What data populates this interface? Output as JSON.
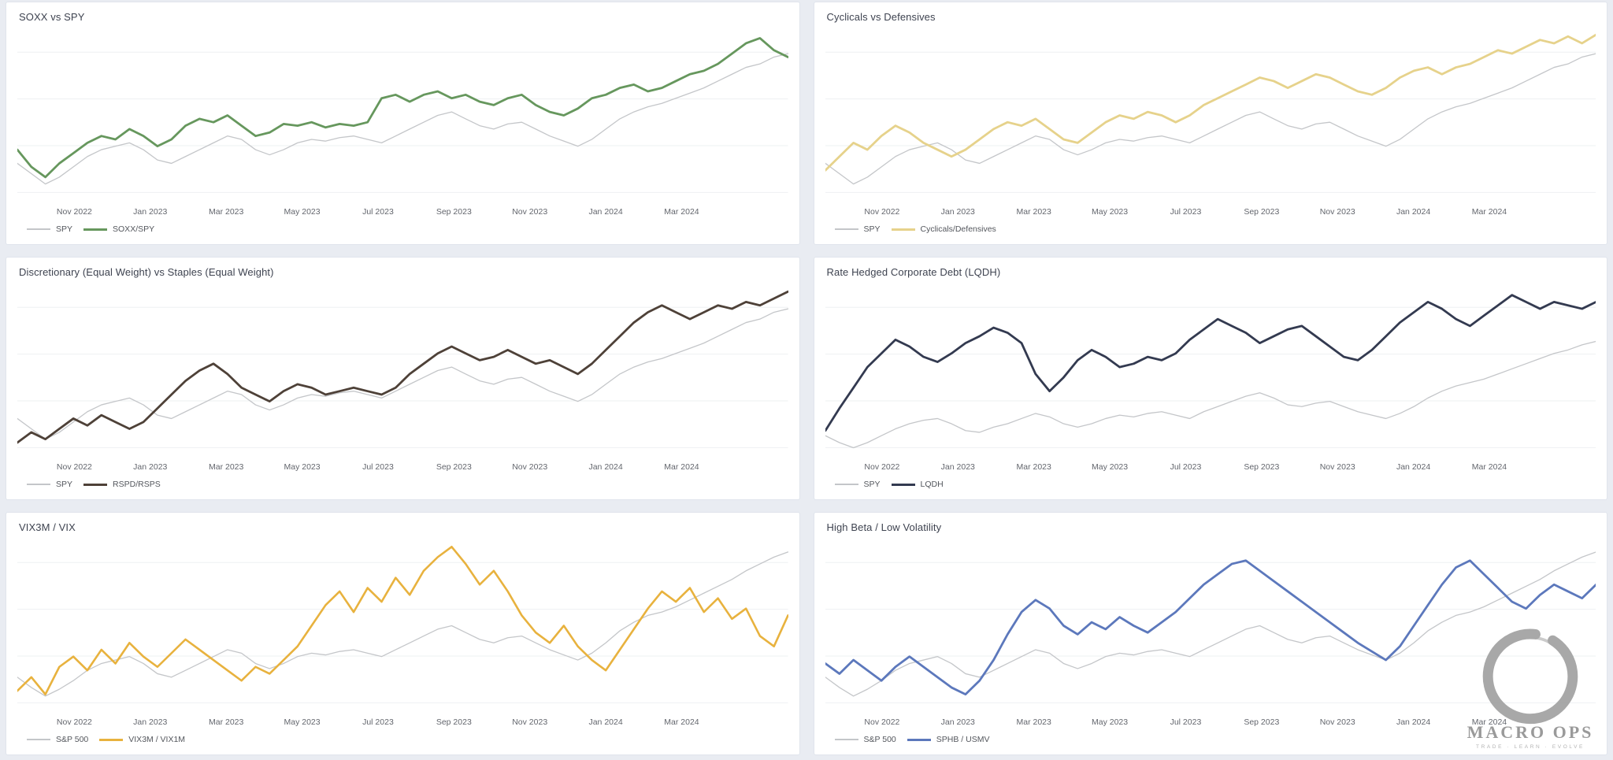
{
  "page": {
    "background_color": "#e9ecf2",
    "panel_color": "#ffffff",
    "grid_layout": "2 columns x 3 rows"
  },
  "axis": {
    "labels": [
      "Nov 2022",
      "Jan 2023",
      "Mar 2023",
      "May 2023",
      "Jul 2023",
      "Sep 2023",
      "Nov 2023",
      "Jan 2024",
      "Mar 2024"
    ]
  },
  "logo": {
    "title": "MACRO OPS",
    "tagline": "TRADE · LEARN · EVOLVE",
    "color": "#9a9a9a"
  },
  "chart_data": [
    {
      "type": "line",
      "title": "SOXX vs SPY",
      "x_axis": [
        "Nov 2022",
        "Jan 2023",
        "Mar 2023",
        "May 2023",
        "Jul 2023",
        "Sep 2023",
        "Nov 2023",
        "Jan 2024",
        "Mar 2024"
      ],
      "y_axis": "hidden (normalized relative performance, values are % of plot height 0-100)",
      "grid": "faint horizontal lines",
      "legend_position": "bottom-left",
      "series": [
        {
          "name": "SPY",
          "color": "#c4c6c9",
          "line_width": 1.3,
          "values": [
            22,
            16,
            10,
            14,
            20,
            26,
            30,
            32,
            34,
            30,
            24,
            22,
            26,
            30,
            34,
            38,
            36,
            30,
            27,
            30,
            34,
            36,
            35,
            37,
            38,
            36,
            34,
            38,
            42,
            46,
            50,
            52,
            48,
            44,
            42,
            45,
            46,
            42,
            38,
            35,
            32,
            36,
            42,
            48,
            52,
            55,
            57,
            60,
            63,
            66,
            70,
            74,
            78,
            80,
            84,
            86
          ]
        },
        {
          "name": "SOXX/SPY",
          "color": "#66975d",
          "line_width": 2.8,
          "values": [
            30,
            20,
            14,
            22,
            28,
            34,
            38,
            36,
            42,
            38,
            32,
            36,
            44,
            48,
            46,
            50,
            44,
            38,
            40,
            45,
            44,
            46,
            43,
            45,
            44,
            46,
            60,
            62,
            58,
            62,
            64,
            60,
            62,
            58,
            56,
            60,
            62,
            56,
            52,
            50,
            54,
            60,
            62,
            66,
            68,
            64,
            66,
            70,
            74,
            76,
            80,
            86,
            92,
            95,
            88,
            84
          ]
        }
      ]
    },
    {
      "type": "line",
      "title": "Cyclicals vs Defensives",
      "x_axis": [
        "Nov 2022",
        "Jan 2023",
        "Mar 2023",
        "May 2023",
        "Jul 2023",
        "Sep 2023",
        "Nov 2023",
        "Jan 2024",
        "Mar 2024"
      ],
      "y_axis": "hidden (normalized relative performance, values are % of plot height 0-100)",
      "grid": "faint horizontal lines",
      "legend_position": "bottom-left",
      "series": [
        {
          "name": "SPY",
          "color": "#c4c6c9",
          "line_width": 1.3,
          "values": [
            22,
            16,
            10,
            14,
            20,
            26,
            30,
            32,
            34,
            30,
            24,
            22,
            26,
            30,
            34,
            38,
            36,
            30,
            27,
            30,
            34,
            36,
            35,
            37,
            38,
            36,
            34,
            38,
            42,
            46,
            50,
            52,
            48,
            44,
            42,
            45,
            46,
            42,
            38,
            35,
            32,
            36,
            42,
            48,
            52,
            55,
            57,
            60,
            63,
            66,
            70,
            74,
            78,
            80,
            84,
            86
          ]
        },
        {
          "name": "Cyclicals/Defensives",
          "color": "#e6d28b",
          "line_width": 2.8,
          "values": [
            18,
            26,
            34,
            30,
            38,
            44,
            40,
            34,
            30,
            26,
            30,
            36,
            42,
            46,
            44,
            48,
            42,
            36,
            34,
            40,
            46,
            50,
            48,
            52,
            50,
            46,
            50,
            56,
            60,
            64,
            68,
            72,
            70,
            66,
            70,
            74,
            72,
            68,
            64,
            62,
            66,
            72,
            76,
            78,
            74,
            78,
            80,
            84,
            88,
            86,
            90,
            94,
            92,
            96,
            92,
            97
          ]
        }
      ]
    },
    {
      "type": "line",
      "title": "Discretionary (Equal Weight) vs Staples (Equal Weight)",
      "x_axis": [
        "Nov 2022",
        "Jan 2023",
        "Mar 2023",
        "May 2023",
        "Jul 2023",
        "Sep 2023",
        "Nov 2023",
        "Jan 2024",
        "Mar 2024"
      ],
      "y_axis": "hidden (normalized relative performance, values are % of plot height 0-100)",
      "grid": "faint horizontal lines",
      "legend_position": "bottom-left",
      "series": [
        {
          "name": "SPY",
          "color": "#c4c6c9",
          "line_width": 1.3,
          "values": [
            22,
            16,
            10,
            14,
            20,
            26,
            30,
            32,
            34,
            30,
            24,
            22,
            26,
            30,
            34,
            38,
            36,
            30,
            27,
            30,
            34,
            36,
            35,
            37,
            38,
            36,
            34,
            38,
            42,
            46,
            50,
            52,
            48,
            44,
            42,
            45,
            46,
            42,
            38,
            35,
            32,
            36,
            42,
            48,
            52,
            55,
            57,
            60,
            63,
            66,
            70,
            74,
            78,
            80,
            84,
            86
          ]
        },
        {
          "name": "RSPD/RSPS",
          "color": "#4e4138",
          "line_width": 2.8,
          "values": [
            8,
            14,
            10,
            16,
            22,
            18,
            24,
            20,
            16,
            20,
            28,
            36,
            44,
            50,
            54,
            48,
            40,
            36,
            32,
            38,
            42,
            40,
            36,
            38,
            40,
            38,
            36,
            40,
            48,
            54,
            60,
            64,
            60,
            56,
            58,
            62,
            58,
            54,
            56,
            52,
            48,
            54,
            62,
            70,
            78,
            84,
            88,
            84,
            80,
            84,
            88,
            86,
            90,
            88,
            92,
            96
          ]
        }
      ]
    },
    {
      "type": "line",
      "title": "Rate Hedged Corporate Debt (LQDH)",
      "x_axis": [
        "Nov 2022",
        "Jan 2023",
        "Mar 2023",
        "May 2023",
        "Jul 2023",
        "Sep 2023",
        "Nov 2023",
        "Jan 2024",
        "Mar 2024"
      ],
      "y_axis": "hidden (normalized relative performance, values are % of plot height 0-100)",
      "grid": "faint horizontal lines",
      "legend_position": "bottom-left",
      "series": [
        {
          "name": "SPY",
          "color": "#c4c6c9",
          "line_width": 1.3,
          "values": [
            12,
            8,
            5,
            8,
            12,
            16,
            19,
            21,
            22,
            19,
            15,
            14,
            17,
            19,
            22,
            25,
            23,
            19,
            17,
            19,
            22,
            24,
            23,
            25,
            26,
            24,
            22,
            26,
            29,
            32,
            35,
            37,
            34,
            30,
            29,
            31,
            32,
            29,
            26,
            24,
            22,
            25,
            29,
            34,
            38,
            41,
            43,
            45,
            48,
            51,
            54,
            57,
            60,
            62,
            65,
            67
          ]
        },
        {
          "name": "LQDH",
          "color": "#333a50",
          "line_width": 2.8,
          "values": [
            15,
            28,
            40,
            52,
            60,
            68,
            64,
            58,
            55,
            60,
            66,
            70,
            75,
            72,
            66,
            48,
            38,
            46,
            56,
            62,
            58,
            52,
            54,
            58,
            56,
            60,
            68,
            74,
            80,
            76,
            72,
            66,
            70,
            74,
            76,
            70,
            64,
            58,
            56,
            62,
            70,
            78,
            84,
            90,
            86,
            80,
            76,
            82,
            88,
            94,
            90,
            86,
            90,
            88,
            86,
            90
          ]
        }
      ]
    },
    {
      "type": "line",
      "title": "VIX3M / VIX",
      "x_axis": [
        "Nov 2022",
        "Jan 2023",
        "Mar 2023",
        "May 2023",
        "Jul 2023",
        "Sep 2023",
        "Nov 2023",
        "Jan 2024",
        "Mar 2024"
      ],
      "y_axis": "hidden (normalized relative performance, values are % of plot height 0-100)",
      "grid": "faint horizontal lines",
      "legend_position": "bottom-left",
      "series": [
        {
          "name": "S&P 500",
          "color": "#c4c6c9",
          "line_width": 1.3,
          "values": [
            20,
            14,
            9,
            13,
            18,
            24,
            28,
            30,
            32,
            28,
            22,
            20,
            24,
            28,
            32,
            36,
            34,
            28,
            25,
            28,
            32,
            34,
            33,
            35,
            36,
            34,
            32,
            36,
            40,
            44,
            48,
            50,
            46,
            42,
            40,
            43,
            44,
            40,
            36,
            33,
            30,
            34,
            40,
            47,
            52,
            56,
            58,
            61,
            65,
            69,
            73,
            77,
            82,
            86,
            90,
            93
          ]
        },
        {
          "name": "VIX3M / VIX1M",
          "color": "#e8b23e",
          "line_width": 2.6,
          "values": [
            12,
            20,
            10,
            26,
            32,
            24,
            36,
            28,
            40,
            32,
            26,
            34,
            42,
            36,
            30,
            24,
            18,
            26,
            22,
            30,
            38,
            50,
            62,
            70,
            58,
            72,
            64,
            78,
            68,
            82,
            90,
            96,
            86,
            74,
            82,
            70,
            56,
            46,
            40,
            50,
            38,
            30,
            24,
            36,
            48,
            60,
            70,
            64,
            72,
            58,
            66,
            54,
            60,
            44,
            38,
            56
          ]
        }
      ]
    },
    {
      "type": "line",
      "title": "High Beta / Low Volatility",
      "x_axis": [
        "Nov 2022",
        "Jan 2023",
        "Mar 2023",
        "May 2023",
        "Jul 2023",
        "Sep 2023",
        "Nov 2023",
        "Jan 2024",
        "Mar 2024"
      ],
      "y_axis": "hidden (normalized relative performance, values are % of plot height 0-100)",
      "grid": "faint horizontal lines",
      "legend_position": "bottom-left",
      "series": [
        {
          "name": "S&P 500",
          "color": "#c4c6c9",
          "line_width": 1.3,
          "values": [
            20,
            14,
            9,
            13,
            18,
            24,
            28,
            30,
            32,
            28,
            22,
            20,
            24,
            28,
            32,
            36,
            34,
            28,
            25,
            28,
            32,
            34,
            33,
            35,
            36,
            34,
            32,
            36,
            40,
            44,
            48,
            50,
            46,
            42,
            40,
            43,
            44,
            40,
            36,
            33,
            30,
            34,
            40,
            47,
            52,
            56,
            58,
            61,
            65,
            69,
            73,
            77,
            82,
            86,
            90,
            93
          ]
        },
        {
          "name": "SPHB / USMV",
          "color": "#5c78bc",
          "line_width": 2.8,
          "values": [
            28,
            22,
            30,
            24,
            18,
            26,
            32,
            26,
            20,
            14,
            10,
            18,
            30,
            45,
            58,
            65,
            60,
            50,
            45,
            52,
            48,
            55,
            50,
            46,
            52,
            58,
            66,
            74,
            80,
            86,
            88,
            82,
            76,
            70,
            64,
            58,
            52,
            46,
            40,
            35,
            30,
            38,
            50,
            62,
            74,
            84,
            88,
            80,
            72,
            64,
            60,
            68,
            74,
            70,
            66,
            74
          ]
        }
      ]
    }
  ]
}
